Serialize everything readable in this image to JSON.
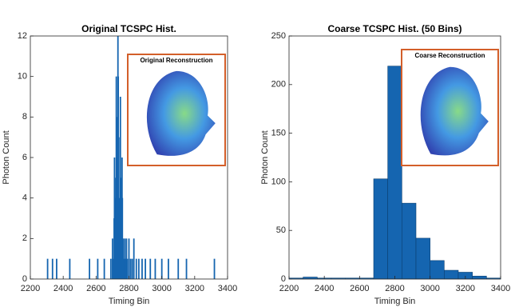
{
  "chart_data": [
    {
      "type": "bar",
      "title": "Original TCSPC Hist.",
      "xlabel": "Timing Bin",
      "ylabel": "Photon Count",
      "inset_title": "Original Reconstruction",
      "color": "#1565b0",
      "x": [
        2305,
        2335,
        2360,
        2440,
        2560,
        2610,
        2650,
        2690,
        2700,
        2705,
        2710,
        2712,
        2715,
        2718,
        2720,
        2723,
        2725,
        2728,
        2730,
        2733,
        2735,
        2738,
        2740,
        2743,
        2745,
        2748,
        2750,
        2753,
        2755,
        2758,
        2760,
        2765,
        2770,
        2775,
        2780,
        2785,
        2790,
        2800,
        2810,
        2820,
        2830,
        2845,
        2860,
        2880,
        2900,
        2930,
        2960,
        3000,
        3040,
        3100,
        3150,
        3320
      ],
      "values": [
        1,
        1,
        1,
        1,
        1,
        1,
        1,
        1,
        2,
        1,
        3,
        6,
        4,
        2,
        5,
        10,
        8,
        3,
        6,
        12,
        10,
        7,
        4,
        3,
        2,
        9,
        5,
        3,
        2,
        6,
        4,
        2,
        1,
        2,
        1,
        2,
        1,
        2,
        1,
        1,
        2,
        1,
        1,
        1,
        1,
        1,
        1,
        1,
        1,
        1,
        1,
        1
      ],
      "xlim": [
        2200,
        3400
      ],
      "xticks": [
        2200,
        2400,
        2600,
        2800,
        3000,
        3200,
        3400
      ],
      "ylim": [
        0,
        12
      ],
      "yticks": [
        0,
        2,
        4,
        6,
        8,
        10,
        12
      ]
    },
    {
      "type": "histogram",
      "title": "Coarse TCSPC Hist. (50 Bins)",
      "xlabel": "Timing Bin",
      "ylabel": "Photon Count",
      "inset_title": "Coarse Reconstruction",
      "color": "#1565b0",
      "bins": [
        2200,
        2280,
        2360,
        2440,
        2520,
        2600,
        2680,
        2760,
        2840,
        2920,
        3000,
        3080,
        3160,
        3240,
        3320,
        3400
      ],
      "values": [
        1,
        2,
        1,
        1,
        1,
        1,
        103,
        219,
        78,
        42,
        19,
        9,
        7,
        3,
        1
      ],
      "xlim": [
        2200,
        3400
      ],
      "xticks": [
        2200,
        2400,
        2600,
        2800,
        3000,
        3200,
        3400
      ],
      "ylim": [
        0,
        250
      ],
      "yticks": [
        0,
        50,
        100,
        150,
        200,
        250
      ]
    }
  ]
}
